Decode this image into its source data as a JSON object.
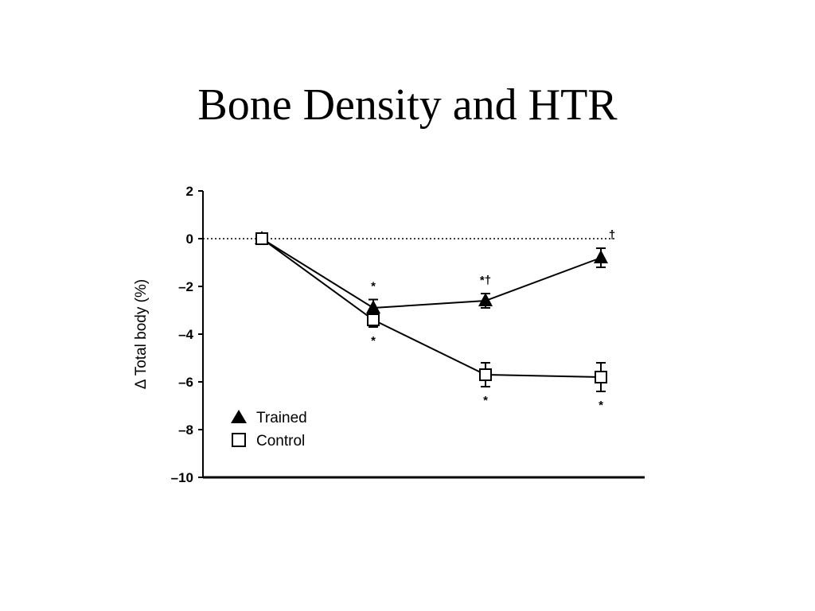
{
  "slide": {
    "title": "Bone Density and HTR"
  },
  "chart_data": {
    "type": "line",
    "title": "",
    "xlabel": "",
    "ylabel": "Δ Total body (%)",
    "ylim": [
      -10,
      2
    ],
    "yticks": [
      2,
      0,
      -2,
      -4,
      -6,
      -8,
      -10
    ],
    "ytick_labels": [
      "2",
      "0",
      "–2",
      "–4",
      "–6",
      "–8",
      "–10"
    ],
    "x": [
      0,
      1,
      2,
      3
    ],
    "reference_line": {
      "y": 0,
      "style": "dotted"
    },
    "legend": {
      "placement": "bottom-left"
    },
    "series": [
      {
        "name": "Trained",
        "marker": "filled-triangle",
        "values": [
          0,
          -2.9,
          -2.6,
          -0.8
        ],
        "errors": [
          0,
          0.35,
          0.3,
          0.4
        ],
        "annotations_above": [
          "",
          "*",
          "*†",
          "†"
        ],
        "annotations_below": [
          "",
          "",
          "",
          ""
        ]
      },
      {
        "name": "Control",
        "marker": "open-square",
        "values": [
          0,
          -3.4,
          -5.7,
          -5.8
        ],
        "errors": [
          0,
          0.3,
          0.5,
          0.6
        ],
        "annotations_above": [
          "",
          "",
          "",
          ""
        ],
        "annotations_below": [
          "",
          "*",
          "*",
          "*"
        ]
      }
    ]
  }
}
